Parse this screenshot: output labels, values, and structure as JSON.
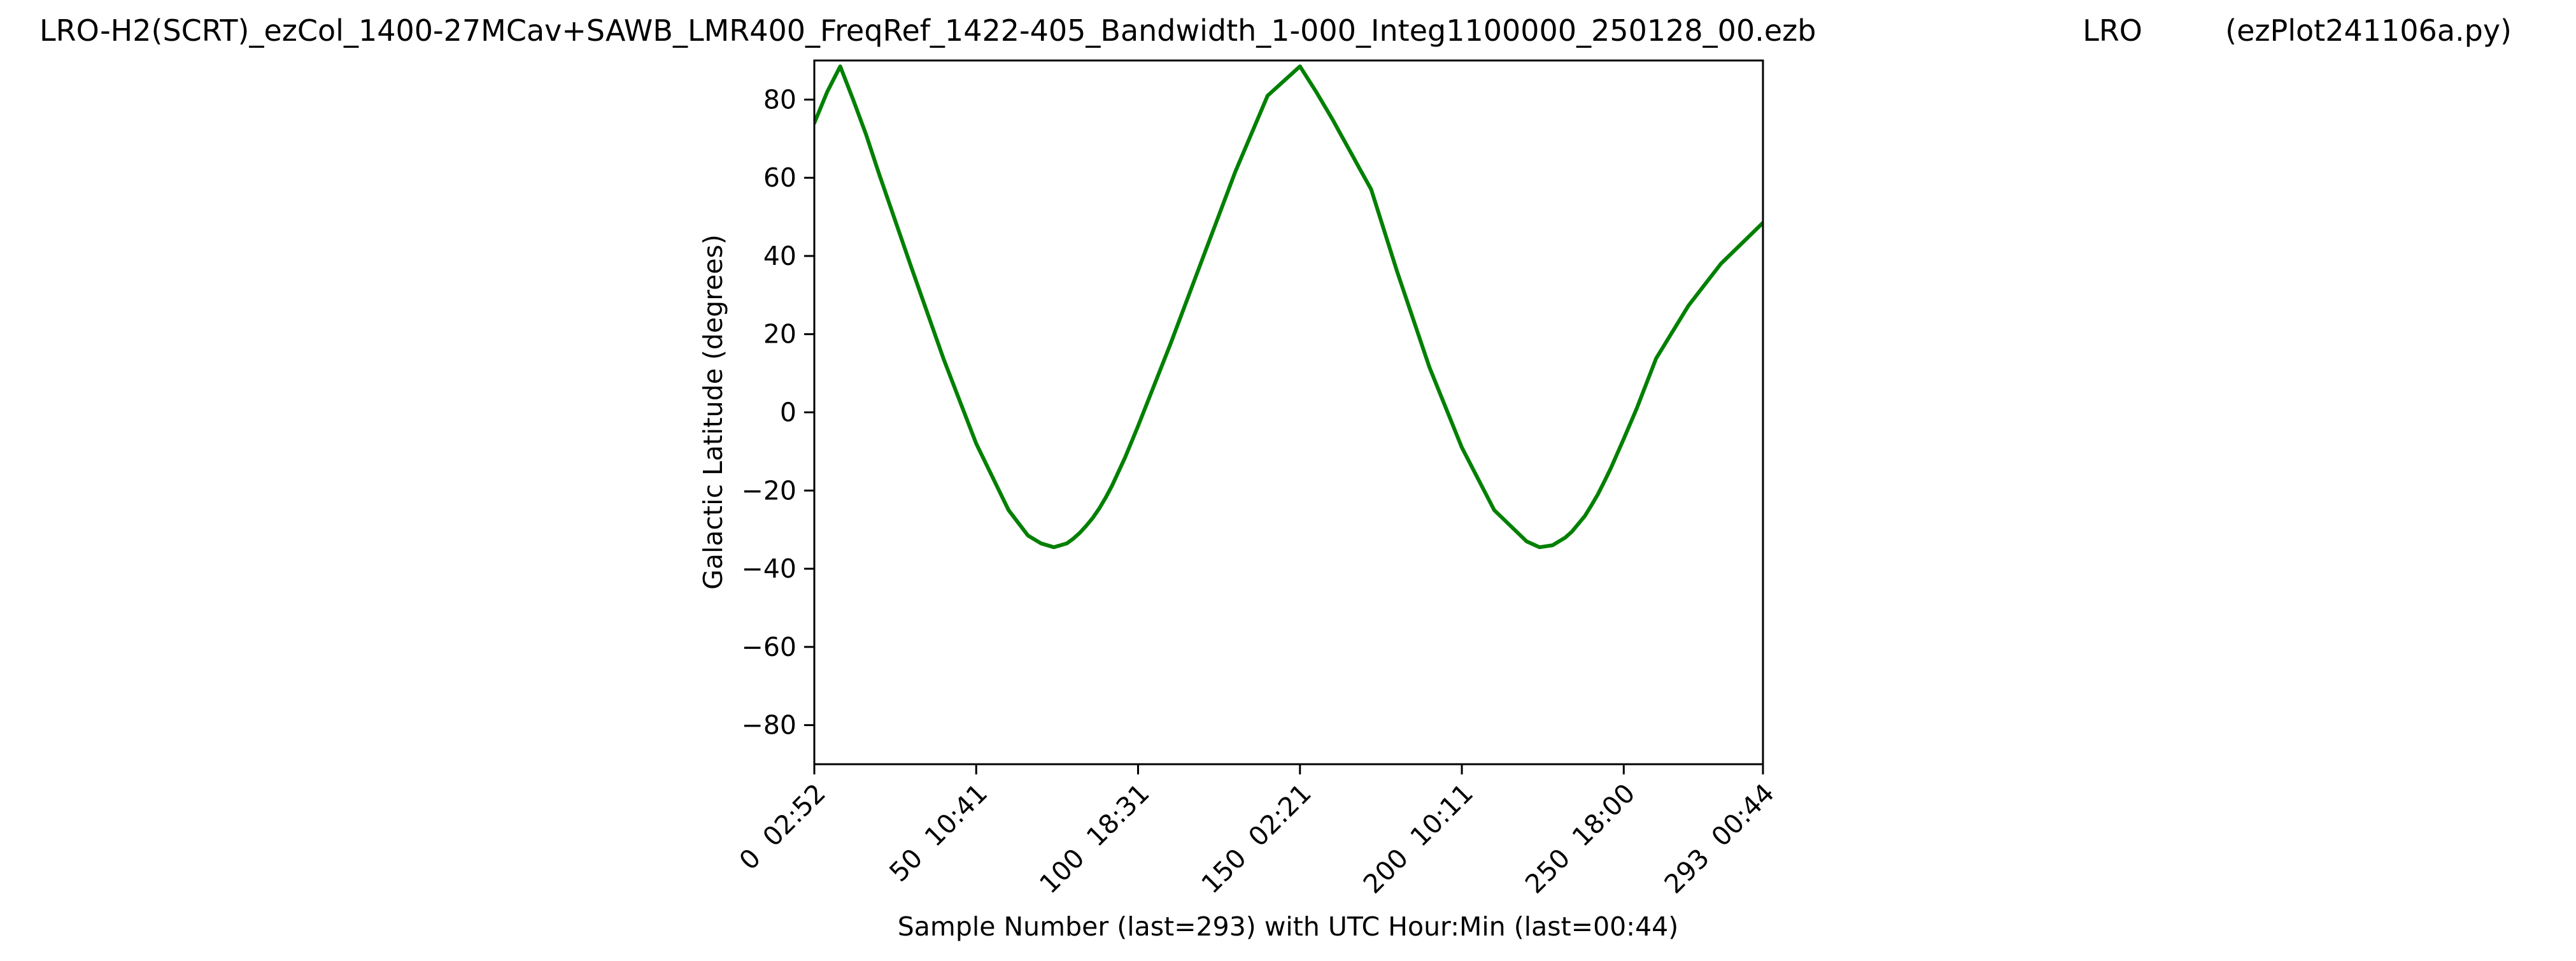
{
  "header": {
    "filename": "LRO-H2(SCRT)_ezCol_1400-27MCav+SAWB_LMR400_FreqRef_1422-405_Bandwidth_1-000_Integ1100000_250128_00.ezb",
    "station": "LRO",
    "script": "(ezPlot241106a.py)"
  },
  "chart_data": {
    "type": "line",
    "title": "LRO-H2(SCRT)_ezCol_1400-27MCav+SAWB_LMR400_FreqRef_1422-405_Bandwidth_1-000_Integ1100000_250128_00.ezb LRO (ezPlot241106a.py)",
    "xlabel": "Sample Number (last=293) with UTC Hour:Min (last=00:44)",
    "ylabel": "Galactic Latitude (degrees)",
    "xlim": [
      0,
      293
    ],
    "ylim": [
      -90,
      90
    ],
    "grid": false,
    "line_color": "#008000",
    "x_ticks": [
      {
        "value": 0,
        "label": "0  02:52"
      },
      {
        "value": 50,
        "label": "50  10:41"
      },
      {
        "value": 100,
        "label": "100  18:31"
      },
      {
        "value": 150,
        "label": "150  02:21"
      },
      {
        "value": 200,
        "label": "200  10:11"
      },
      {
        "value": 250,
        "label": "250  18:00"
      },
      {
        "value": 293,
        "label": "293  00:44"
      }
    ],
    "y_ticks": [
      {
        "value": 80,
        "label": "80"
      },
      {
        "value": 60,
        "label": "60"
      },
      {
        "value": 40,
        "label": "40"
      },
      {
        "value": 20,
        "label": "20"
      },
      {
        "value": 0,
        "label": "0"
      },
      {
        "value": -20,
        "label": "−20"
      },
      {
        "value": -40,
        "label": "−40"
      },
      {
        "value": -60,
        "label": "−60"
      },
      {
        "value": -80,
        "label": "−80"
      }
    ],
    "series": [
      {
        "x": [
          0,
          4,
          8,
          12,
          16,
          20,
          30,
          40,
          50,
          60,
          66,
          70,
          74,
          78,
          80,
          82,
          84,
          86,
          88,
          90,
          92,
          96,
          100,
          110,
          120,
          130,
          140,
          150,
          155,
          160,
          162,
          164,
          166,
          168,
          172,
          180,
          190,
          200,
          210,
          220,
          224,
          228,
          232,
          234,
          236,
          238,
          240,
          242,
          244,
          246,
          250,
          254,
          260,
          270,
          280,
          293
        ],
        "y": [
          74,
          82,
          88.5,
          80,
          71,
          61,
          37,
          13.5,
          -8,
          -25,
          -31.5,
          -33.5,
          -34.5,
          -33.5,
          -32.3,
          -30.8,
          -29,
          -27,
          -24.6,
          -21.8,
          -18.7,
          -11.5,
          -3.5,
          17.5,
          39.5,
          61.5,
          81,
          88.5,
          82,
          75,
          72,
          69,
          66,
          63,
          57,
          36,
          11.5,
          -9,
          -25,
          -33,
          -34.5,
          -34,
          -32,
          -30.5,
          -28.5,
          -26.5,
          -23.8,
          -21,
          -17.7,
          -14.3,
          -6.8,
          1,
          13.8,
          27.3,
          38,
          48.5
        ]
      }
    ]
  }
}
